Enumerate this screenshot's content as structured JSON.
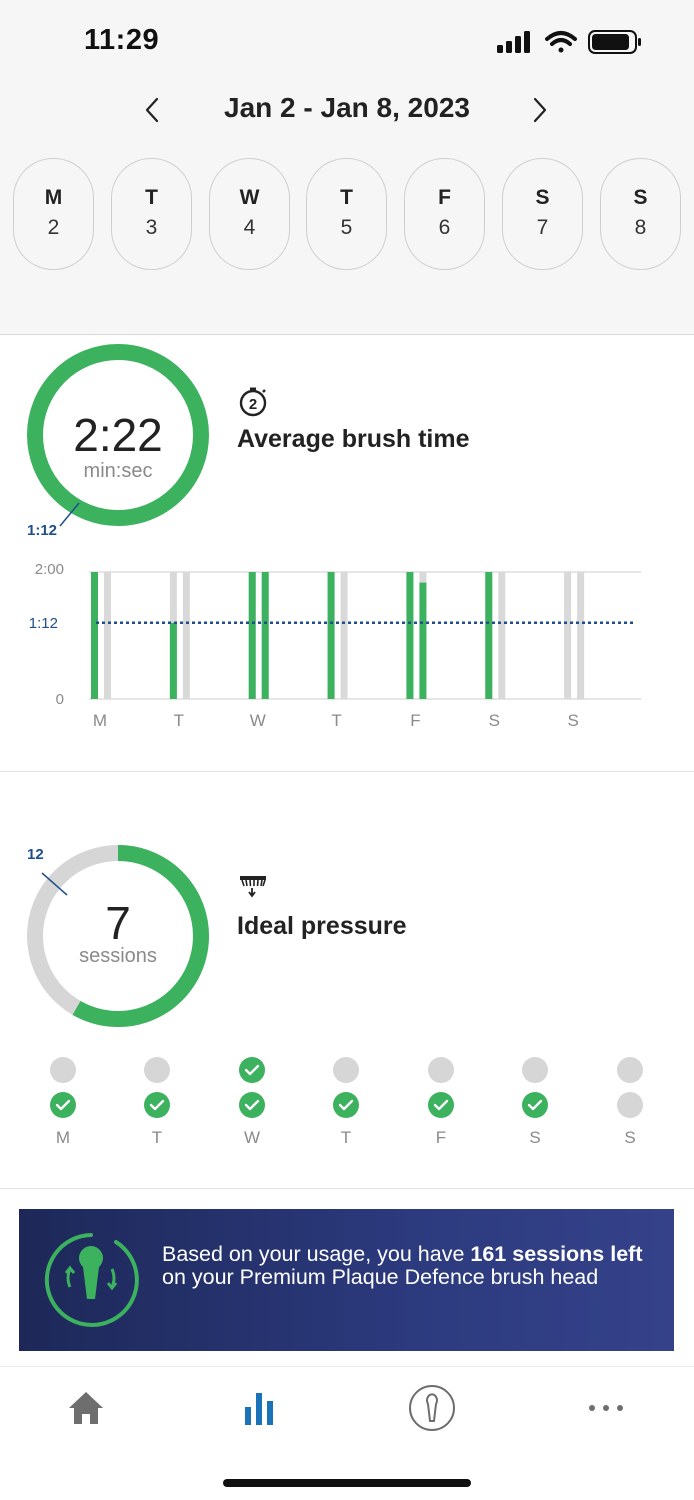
{
  "status_bar": {
    "time": "11:29"
  },
  "week": {
    "range_label": "Jan 2 - Jan 8, 2023",
    "days": [
      {
        "letter": "M",
        "number": "2"
      },
      {
        "letter": "T",
        "number": "3"
      },
      {
        "letter": "W",
        "number": "4"
      },
      {
        "letter": "T",
        "number": "5"
      },
      {
        "letter": "F",
        "number": "6"
      },
      {
        "letter": "S",
        "number": "7"
      },
      {
        "letter": "S",
        "number": "8"
      }
    ]
  },
  "brush_time": {
    "title": "Average brush time",
    "icon": "stopwatch-icon",
    "value": "2:22",
    "unit": "min:sec",
    "ring_fraction": 1.0,
    "target_marker": "1:12",
    "chart_data": {
      "type": "bar",
      "title": "",
      "categories": [
        "M",
        "T",
        "W",
        "T",
        "F",
        "S",
        "S"
      ],
      "y_ticks": [
        "2:00",
        "1:12",
        "0"
      ],
      "ylim_seconds": [
        0,
        120
      ],
      "reference_line": {
        "label": "1:12",
        "value_seconds": 72
      },
      "series": [
        {
          "values_seconds": [
            120,
            72,
            120,
            120,
            120,
            120,
            0
          ]
        },
        {
          "values_seconds": [
            0,
            0,
            120,
            0,
            110,
            0,
            0
          ]
        }
      ],
      "colors": {
        "bar": "#3cb15e",
        "track": "#d9d9d9",
        "reference": "#1f4e8c"
      }
    }
  },
  "pressure": {
    "title": "Ideal pressure",
    "icon": "brush-pressure-icon",
    "value": "7",
    "unit": "sessions",
    "target_marker": "12",
    "ring_fraction": 0.5833,
    "days": [
      "M",
      "T",
      "W",
      "T",
      "F",
      "S",
      "S"
    ],
    "morning_done": [
      false,
      false,
      true,
      false,
      false,
      false,
      false
    ],
    "evening_done": [
      true,
      true,
      true,
      true,
      true,
      true,
      false
    ]
  },
  "banner": {
    "text_before": "Based on your usage, you have ",
    "text_bold": "161 sessions left",
    "text_after": " on your Premium Plaque Defence brush head"
  },
  "tabbar": {
    "tabs": [
      "home-icon",
      "stats-icon",
      "brush-icon",
      "more-icon"
    ],
    "active_index": 1
  },
  "colors": {
    "green": "#3cb15e",
    "gray": "#d6d6d6",
    "navy": "#1f4e8c",
    "accent_blue": "#1a73b8"
  }
}
